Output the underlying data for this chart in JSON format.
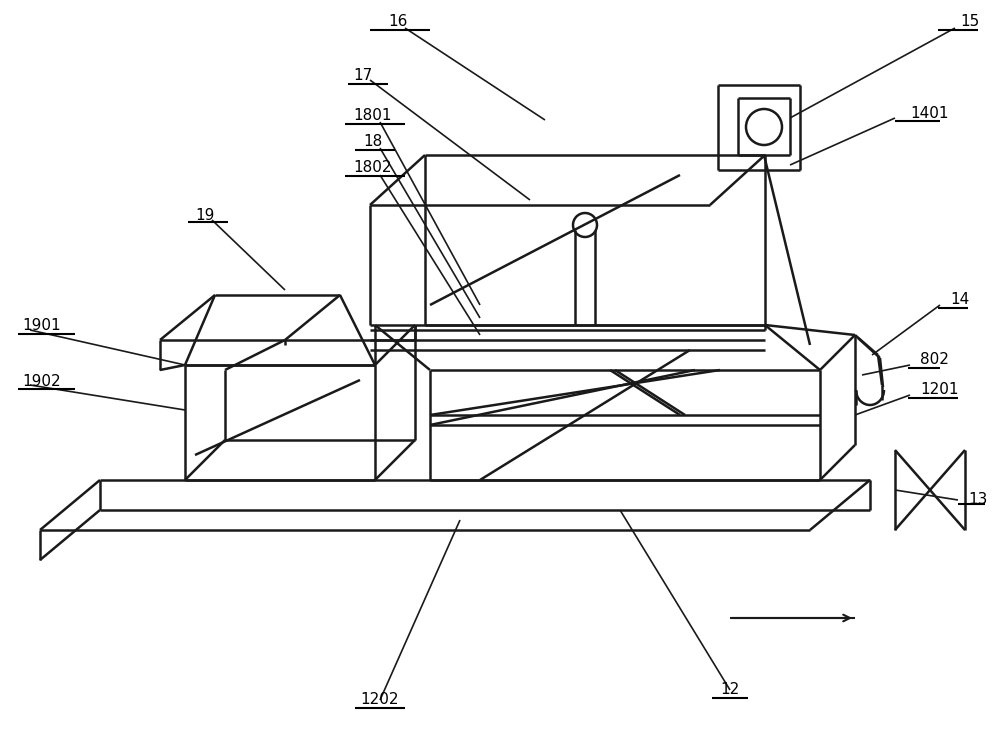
{
  "bg_color": "#ffffff",
  "lc": "#1a1a1a",
  "lw": 1.8,
  "lw_thin": 1.2,
  "label_fs": 11
}
